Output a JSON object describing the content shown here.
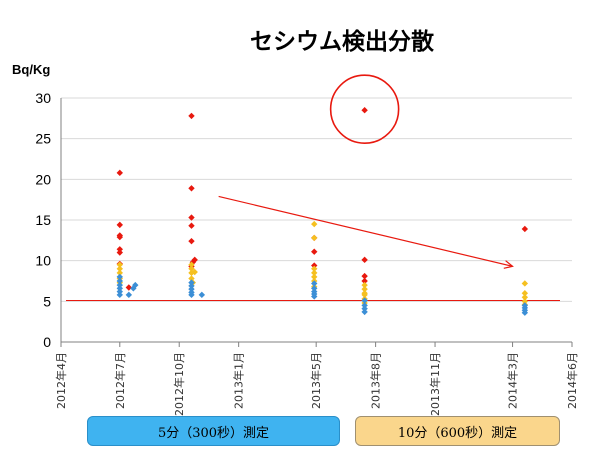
{
  "chart_data": {
    "type": "scatter",
    "title": "セシウム検出分散",
    "ylabel": "Bq/Kg",
    "ylim": [
      0,
      30
    ],
    "yticks": [
      "0",
      "5",
      "10",
      "15",
      "20",
      "25",
      "30"
    ],
    "xlim": [
      "2012-04-01",
      "2014-06-01"
    ],
    "xticks": [
      "2012年4月",
      "2012年7月",
      "2012年10月",
      "2013年1月",
      "2013年5月",
      "2013年8月",
      "2013年11月",
      "2014年3月",
      "2014年6月"
    ],
    "xtick_dates": [
      "2012-04-01",
      "2012-07-01",
      "2012-10-01",
      "2013-01-01",
      "2013-05-01",
      "2013-08-01",
      "2013-11-01",
      "2014-03-01",
      "2014-06-01"
    ],
    "reference_line": 5.1,
    "trend_arrow": {
      "from": [
        "2012-12-01",
        17.9
      ],
      "to": [
        "2014-03-01",
        9.3
      ]
    },
    "highlight_circle": {
      "x": "2013-07-15",
      "y": 28.5
    },
    "series": [
      {
        "color": "#e8190f",
        "points": [
          [
            "2012-07-01",
            20.8
          ],
          [
            "2012-07-01",
            14.4
          ],
          [
            "2012-07-01",
            13.1
          ],
          [
            "2012-07-01",
            12.9
          ],
          [
            "2012-07-01",
            11.4
          ],
          [
            "2012-07-01",
            11.0
          ],
          [
            "2012-07-01",
            9.6
          ],
          [
            "2012-07-15",
            6.7
          ],
          [
            "2012-10-20",
            27.8
          ],
          [
            "2012-10-20",
            18.9
          ],
          [
            "2012-10-20",
            15.3
          ],
          [
            "2012-10-20",
            14.3
          ],
          [
            "2012-10-20",
            12.4
          ],
          [
            "2012-10-25",
            10.1
          ],
          [
            "2012-10-22",
            9.8
          ],
          [
            "2012-10-20",
            9.3
          ],
          [
            "2013-04-28",
            12.8
          ],
          [
            "2013-04-28",
            11.1
          ],
          [
            "2013-04-28",
            9.4
          ],
          [
            "2013-07-15",
            28.5
          ],
          [
            "2013-07-15",
            10.1
          ],
          [
            "2013-07-15",
            8.1
          ],
          [
            "2013-07-15",
            7.5
          ],
          [
            "2014-03-20",
            13.9
          ]
        ]
      },
      {
        "color": "#f5c020",
        "points": [
          [
            "2012-07-01",
            9.5
          ],
          [
            "2012-07-01",
            9.0
          ],
          [
            "2012-07-01",
            8.5
          ],
          [
            "2012-07-01",
            7.8
          ],
          [
            "2012-07-01",
            7.3
          ],
          [
            "2012-10-20",
            9.5
          ],
          [
            "2012-10-20",
            9.0
          ],
          [
            "2012-10-20",
            8.5
          ],
          [
            "2012-10-25",
            8.6
          ],
          [
            "2012-10-20",
            7.8
          ],
          [
            "2012-10-22",
            7.3
          ],
          [
            "2013-04-28",
            14.5
          ],
          [
            "2013-04-28",
            12.8
          ],
          [
            "2013-04-28",
            9.0
          ],
          [
            "2013-04-28",
            8.5
          ],
          [
            "2013-04-28",
            8.0
          ],
          [
            "2013-04-28",
            7.5
          ],
          [
            "2013-04-28",
            6.8
          ],
          [
            "2013-07-15",
            7.0
          ],
          [
            "2013-07-15",
            6.5
          ],
          [
            "2013-07-15",
            6.0
          ],
          [
            "2013-07-15",
            5.8
          ],
          [
            "2013-07-15",
            5.3
          ],
          [
            "2013-07-15",
            4.8
          ],
          [
            "2014-03-20",
            7.2
          ],
          [
            "2014-03-20",
            6.0
          ],
          [
            "2014-03-20",
            5.5
          ],
          [
            "2014-03-20",
            5.0
          ],
          [
            "2014-03-20",
            4.6
          ]
        ]
      },
      {
        "color": "#3c8fd6",
        "points": [
          [
            "2012-07-01",
            8.0
          ],
          [
            "2012-07-01",
            7.5
          ],
          [
            "2012-07-01",
            7.0
          ],
          [
            "2012-07-01",
            6.6
          ],
          [
            "2012-07-01",
            6.2
          ],
          [
            "2012-07-01",
            5.8
          ],
          [
            "2012-07-15",
            5.8
          ],
          [
            "2012-07-22",
            6.6
          ],
          [
            "2012-07-25",
            7.0
          ],
          [
            "2012-10-20",
            7.3
          ],
          [
            "2012-10-20",
            6.9
          ],
          [
            "2012-10-20",
            6.5
          ],
          [
            "2012-10-20",
            6.1
          ],
          [
            "2012-10-20",
            5.8
          ],
          [
            "2012-11-05",
            5.8
          ],
          [
            "2013-04-28",
            7.2
          ],
          [
            "2013-04-28",
            6.6
          ],
          [
            "2013-04-28",
            6.2
          ],
          [
            "2013-04-28",
            5.9
          ],
          [
            "2013-04-28",
            5.6
          ],
          [
            "2013-07-15",
            5.1
          ],
          [
            "2013-07-15",
            4.5
          ],
          [
            "2013-07-15",
            4.1
          ],
          [
            "2013-07-15",
            3.7
          ],
          [
            "2014-03-20",
            4.5
          ],
          [
            "2014-03-20",
            4.2
          ],
          [
            "2014-03-20",
            3.9
          ],
          [
            "2014-03-20",
            3.6
          ]
        ]
      }
    ]
  },
  "measurement_periods": [
    {
      "label": "5分（300秒）測定",
      "color": "#3fb3f0"
    },
    {
      "label": "10分（600秒）測定",
      "color": "#fad68c"
    }
  ]
}
